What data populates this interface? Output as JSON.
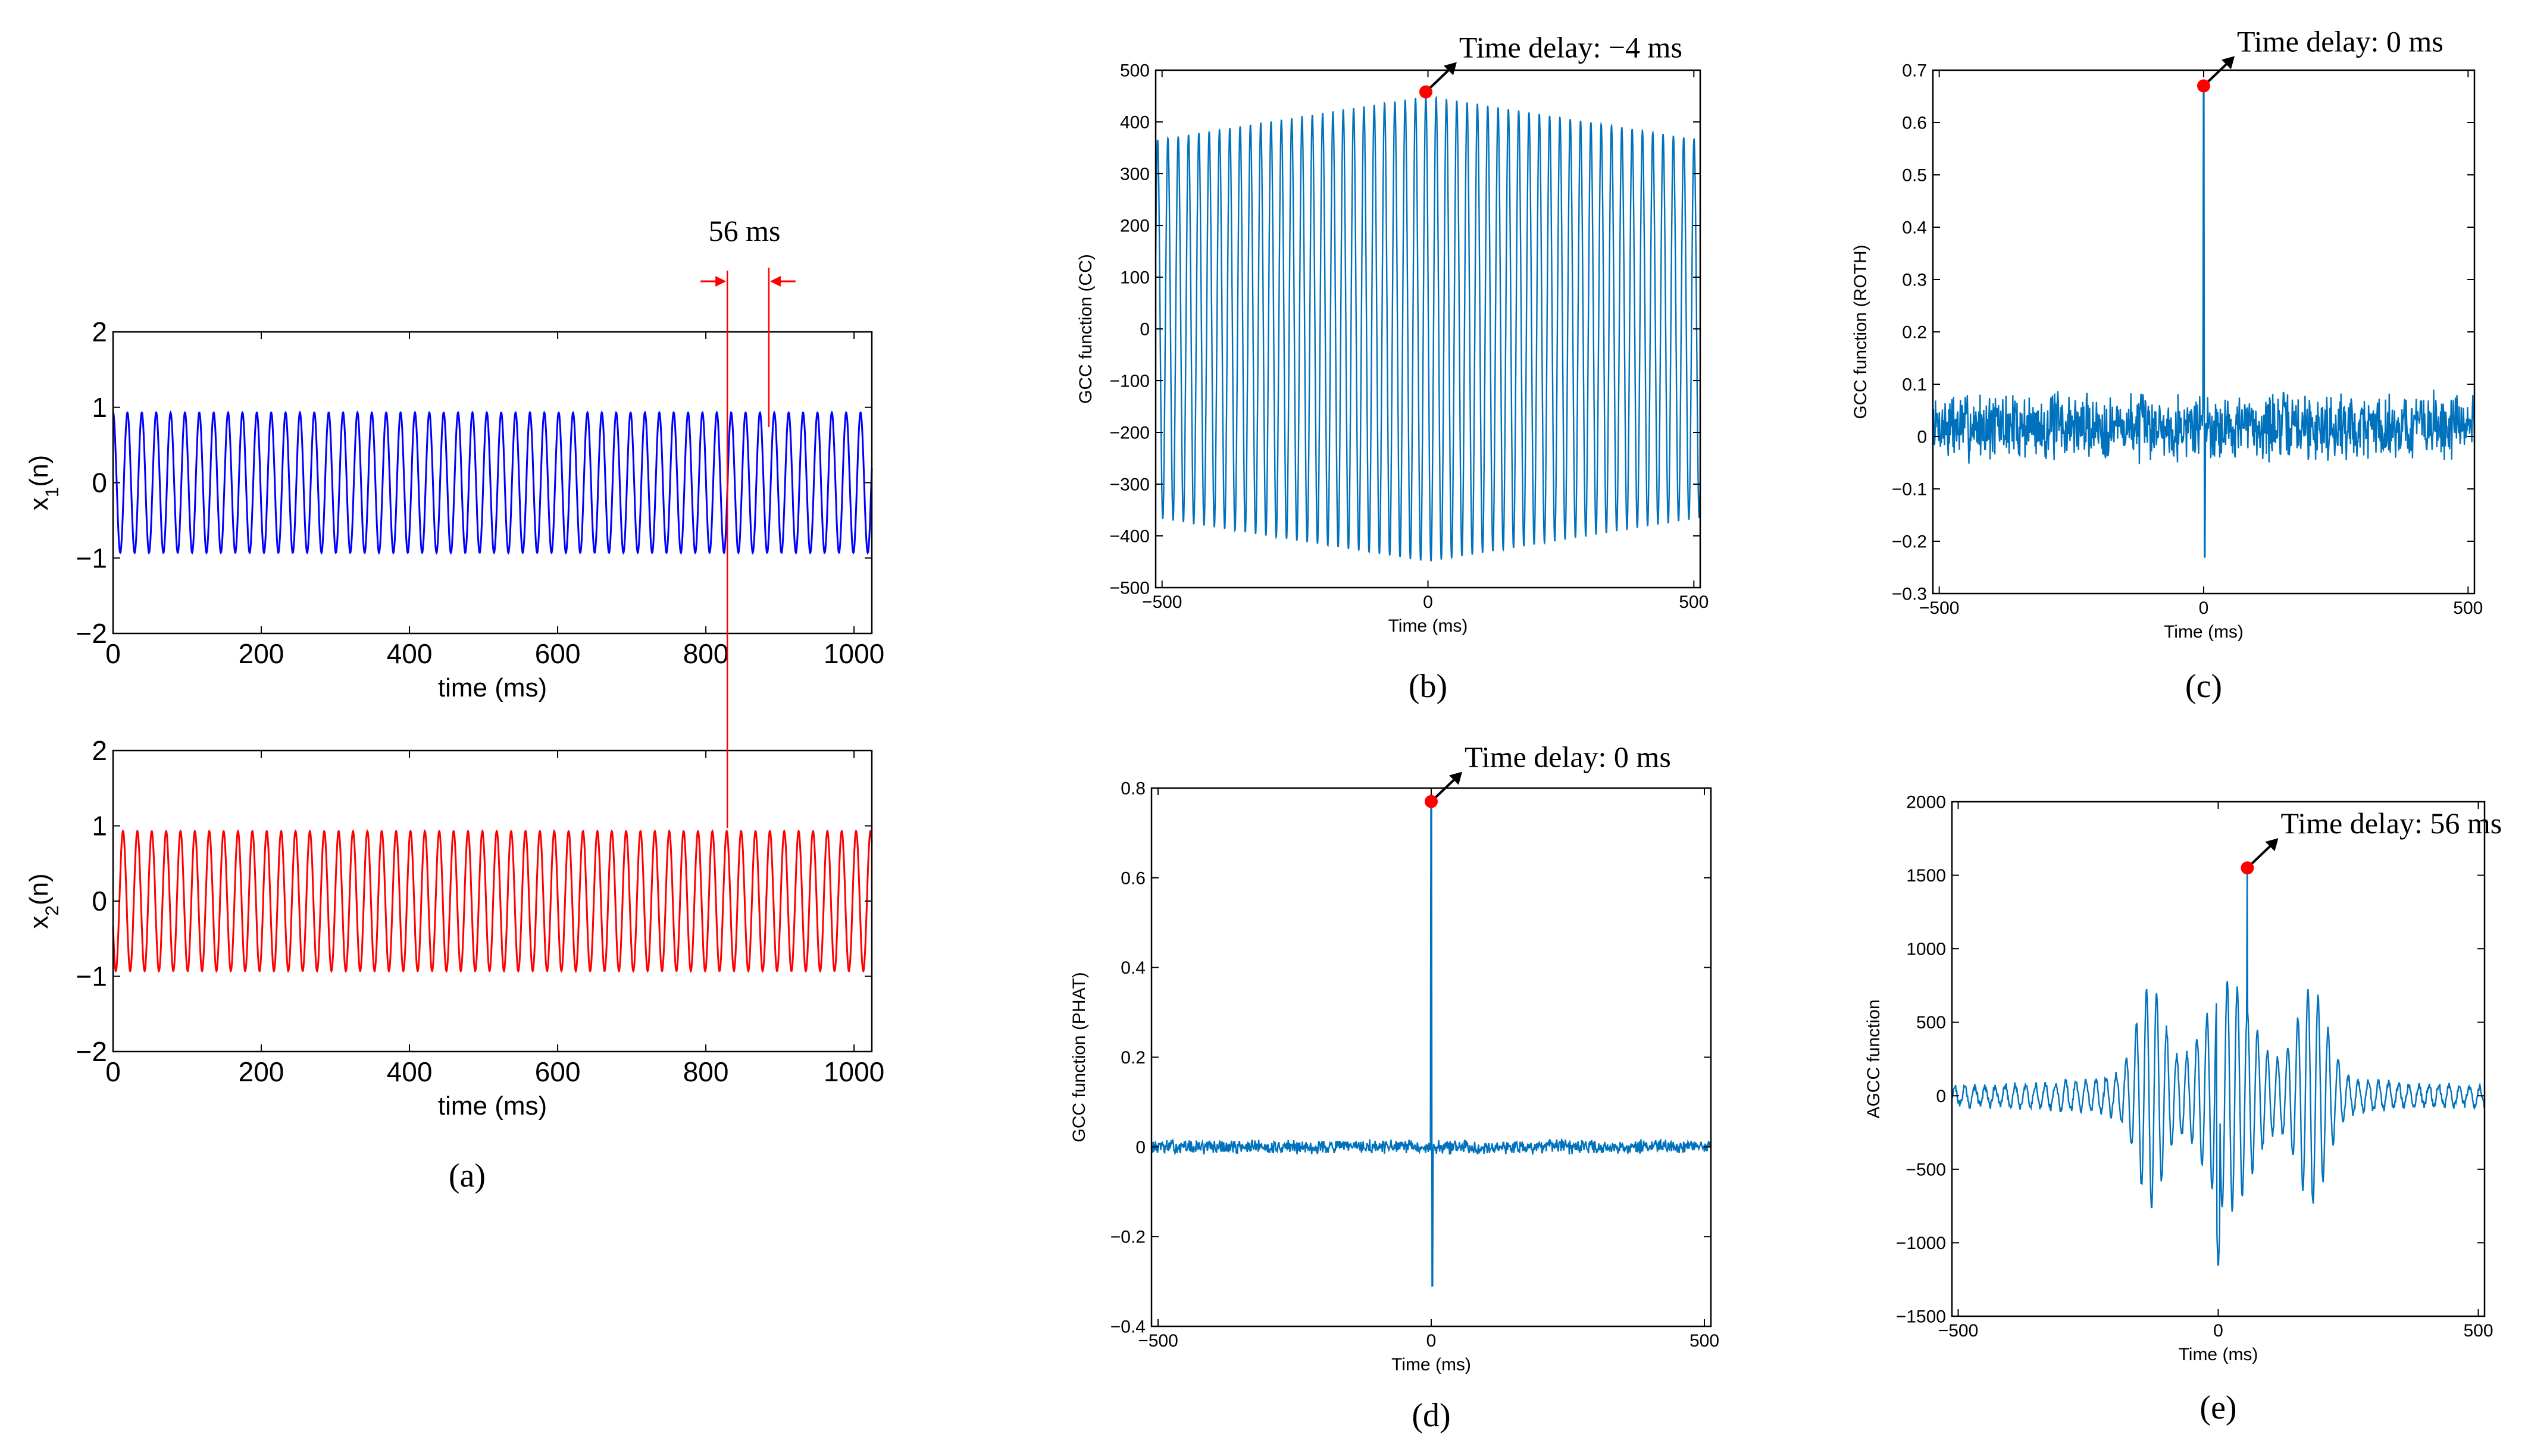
{
  "colors": {
    "x1_blue": "#0000ff",
    "x2_red": "#ff0000",
    "gcc_blue": "#0072bd",
    "marker_red": "#ff0000",
    "marker_line": "#ff0000",
    "axes": "#000000"
  },
  "annotations": {
    "delay_label": "56 ms"
  },
  "chart_data": [
    {
      "id": "a_top",
      "type": "line",
      "subcaption": "",
      "ylabel_base": "x",
      "ylabel_sub": "1",
      "ylabel_tail": "(n)",
      "xlabel": "time (ms)",
      "xlim": [
        0,
        1024
      ],
      "ylim": [
        -2,
        2
      ],
      "xticks": [
        0,
        200,
        400,
        600,
        800,
        1000
      ],
      "yticks": [
        -2,
        -1,
        0,
        1,
        2
      ],
      "xtick_labels": [
        "0",
        "200",
        "400",
        "600",
        "800",
        "1000"
      ],
      "ytick_labels": [
        "−2",
        "−1",
        "0",
        "1",
        "2"
      ],
      "signal": {
        "kind": "sine",
        "period_ms": 19.4,
        "amplitude": 0.93
      },
      "color_key": "x1_blue"
    },
    {
      "id": "a_bottom",
      "type": "line",
      "subcaption": "(a)",
      "ylabel_base": "x",
      "ylabel_sub": "2",
      "ylabel_tail": "(n)",
      "xlabel": "time (ms)",
      "xlim": [
        0,
        1024
      ],
      "ylim": [
        -2,
        2
      ],
      "xticks": [
        0,
        200,
        400,
        600,
        800,
        1000
      ],
      "yticks": [
        -2,
        -1,
        0,
        1,
        2
      ],
      "xtick_labels": [
        "0",
        "200",
        "400",
        "600",
        "800",
        "1000"
      ],
      "ytick_labels": [
        "−2",
        "−1",
        "0",
        "1",
        "2"
      ],
      "signal": {
        "kind": "sine",
        "period_ms": 19.4,
        "amplitude": 0.93,
        "phase_ms": 6
      },
      "color_key": "x2_red"
    },
    {
      "id": "b",
      "type": "line",
      "subcaption": "(b)",
      "ylabel": "GCC function (CC)",
      "xlabel": "Time (ms)",
      "xlim": [
        -512,
        512
      ],
      "ylim": [
        -500,
        500
      ],
      "xticks": [
        -500,
        0,
        500
      ],
      "yticks": [
        -500,
        -400,
        -300,
        -200,
        -100,
        0,
        100,
        200,
        300,
        400,
        500
      ],
      "xtick_labels": [
        "−500",
        "0",
        "500"
      ],
      "ytick_labels": [
        "−500",
        "−400",
        "−300",
        "−200",
        "−100",
        "0",
        "100",
        "200",
        "300",
        "400",
        "500"
      ],
      "peak": {
        "x": -4,
        "y": 458,
        "label": "Time delay: −4 ms"
      },
      "signal": {
        "kind": "cc",
        "period_ms": 19.4,
        "edge_amplitude": 365,
        "center_amplitude": 450
      },
      "color_key": "gcc_blue"
    },
    {
      "id": "c",
      "type": "line",
      "subcaption": "(c)",
      "ylabel": "GCC function (ROTH)",
      "xlabel": "Time (ms)",
      "xlim": [
        -512,
        512
      ],
      "ylim": [
        -0.3,
        0.7
      ],
      "xticks": [
        -500,
        0,
        500
      ],
      "yticks": [
        -0.3,
        -0.2,
        -0.1,
        0,
        0.1,
        0.2,
        0.3,
        0.4,
        0.5,
        0.6,
        0.7
      ],
      "xtick_labels": [
        "−500",
        "0",
        "500"
      ],
      "ytick_labels": [
        "−0.3",
        "−0.2",
        "−0.1",
        "0",
        "0.1",
        "0.2",
        "0.3",
        "0.4",
        "0.5",
        "0.6",
        "0.7"
      ],
      "peak": {
        "x": 0,
        "y": 0.67,
        "label": "Time delay: 0 ms"
      },
      "signal": {
        "kind": "spike_noise",
        "noise_amp": 0.05,
        "offset": 0.02,
        "dip": -0.23,
        "seed": 7
      },
      "color_key": "gcc_blue"
    },
    {
      "id": "d",
      "type": "line",
      "subcaption": "(d)",
      "ylabel": "GCC function (PHAT)",
      "xlabel": "Time (ms)",
      "xlim": [
        -512,
        512
      ],
      "ylim": [
        -0.4,
        0.8
      ],
      "xticks": [
        -500,
        0,
        500
      ],
      "yticks": [
        -0.4,
        -0.2,
        0,
        0.2,
        0.4,
        0.6,
        0.8
      ],
      "xtick_labels": [
        "−500",
        "0",
        "500"
      ],
      "ytick_labels": [
        "−0.4",
        "−0.2",
        "0",
        "0.2",
        "0.4",
        "0.6",
        "0.8"
      ],
      "peak": {
        "x": 0,
        "y": 0.77,
        "label": "Time delay: 0 ms"
      },
      "signal": {
        "kind": "spike_noise",
        "noise_amp": 0.012,
        "offset": 0.0,
        "dip": -0.31,
        "seed": 13
      },
      "color_key": "gcc_blue"
    },
    {
      "id": "e",
      "type": "line",
      "subcaption": "(e)",
      "ylabel": "AGCC function",
      "xlabel": "Time (ms)",
      "xlim": [
        -512,
        512
      ],
      "ylim": [
        -1500,
        2000
      ],
      "xticks": [
        -500,
        0,
        500
      ],
      "yticks": [
        -1500,
        -1000,
        -500,
        0,
        500,
        1000,
        1500,
        2000
      ],
      "xtick_labels": [
        "−500",
        "0",
        "500"
      ],
      "ytick_labels": [
        "−1500",
        "−1000",
        "−500",
        "0",
        "500",
        "1000",
        "1500",
        "2000"
      ],
      "peak": {
        "x": 56,
        "y": 1550,
        "label": "Time delay: 56 ms"
      },
      "signal": {
        "kind": "agcc",
        "period_ms": 19.4,
        "seed": 21
      },
      "color_key": "gcc_blue"
    }
  ]
}
